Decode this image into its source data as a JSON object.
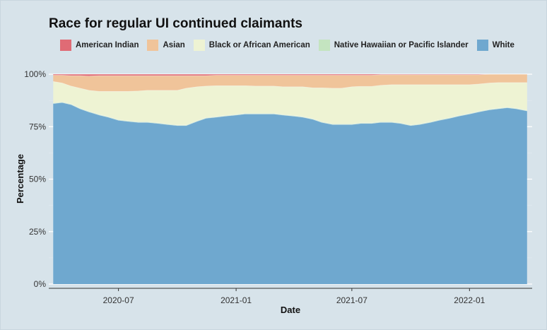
{
  "chart_data": {
    "type": "area",
    "stacked": true,
    "normalized": true,
    "title": "Race for regular UI continued claimants",
    "xlabel": "Date",
    "ylabel": "Percentage",
    "x_ticks": [
      "2020-07",
      "2021-01",
      "2021-07",
      "2022-01"
    ],
    "y_ticks": [
      "0%",
      "25%",
      "50%",
      "75%",
      "100%"
    ],
    "ylim": [
      0,
      100
    ],
    "xlim": [
      "2020-03-14",
      "2022-04-09"
    ],
    "grid": true,
    "legend_position": "top",
    "x": [
      "2020-03-21",
      "2020-04-04",
      "2020-04-18",
      "2020-05-02",
      "2020-05-16",
      "2020-06-01",
      "2020-06-15",
      "2020-07-01",
      "2020-07-15",
      "2020-08-01",
      "2020-08-15",
      "2020-09-01",
      "2020-09-15",
      "2020-10-01",
      "2020-10-15",
      "2020-11-01",
      "2020-11-15",
      "2020-12-01",
      "2020-12-15",
      "2021-01-01",
      "2021-01-15",
      "2021-02-01",
      "2021-02-15",
      "2021-03-01",
      "2021-03-15",
      "2021-04-01",
      "2021-04-15",
      "2021-05-01",
      "2021-05-15",
      "2021-06-01",
      "2021-06-15",
      "2021-07-01",
      "2021-07-15",
      "2021-08-01",
      "2021-08-15",
      "2021-09-01",
      "2021-09-15",
      "2021-10-01",
      "2021-10-15",
      "2021-11-01",
      "2021-11-15",
      "2021-12-01",
      "2021-12-15",
      "2022-01-01",
      "2022-01-15",
      "2022-02-01",
      "2022-02-15",
      "2022-03-01",
      "2022-03-15",
      "2022-04-01"
    ],
    "series": [
      {
        "name": "White",
        "color": "#6fa8cf",
        "values": [
          86,
          86.5,
          85.5,
          83.5,
          82,
          80.5,
          79.5,
          78,
          77.5,
          77,
          77,
          76.5,
          76,
          75.5,
          75.5,
          77.5,
          79,
          79.5,
          80,
          80.5,
          81,
          81,
          81,
          81,
          80.5,
          80,
          79.5,
          78.5,
          77,
          76,
          76,
          76,
          76.5,
          76.5,
          77,
          77,
          76.5,
          75.5,
          76,
          77,
          78,
          79,
          80,
          81,
          82,
          83,
          83.5,
          84,
          83.5,
          82.5
        ]
      },
      {
        "name": "Native Hawaiian or Pacific Islander",
        "color": "#c4e4c0",
        "values": [
          0.3,
          0.3,
          0.3,
          0.3,
          0.3,
          0.3,
          0.3,
          0.3,
          0.3,
          0.3,
          0.3,
          0.3,
          0.3,
          0.3,
          0.3,
          0.3,
          0.3,
          0.3,
          0.3,
          0.3,
          0.3,
          0.3,
          0.3,
          0.3,
          0.3,
          0.3,
          0.3,
          0.3,
          0.3,
          0.3,
          0.3,
          0.3,
          0.3,
          0.3,
          0.3,
          0.3,
          0.3,
          0.3,
          0.3,
          0.3,
          0.3,
          0.3,
          0.3,
          0.3,
          0.3,
          0.3,
          0.3,
          0.3,
          0.3,
          0.3
        ]
      },
      {
        "name": "Black or African American",
        "color": "#eef3d3",
        "values": [
          10.2,
          9,
          8.5,
          9.5,
          10,
          11,
          12,
          13.5,
          14,
          14.7,
          15,
          15.5,
          16,
          16.5,
          17.5,
          16.2,
          15,
          14.7,
          14.2,
          13.7,
          13.2,
          13,
          13,
          13,
          13.2,
          13.7,
          14.2,
          14.7,
          16.2,
          17,
          17,
          17.7,
          17.4,
          17.4,
          17.4,
          17.7,
          18.2,
          19.2,
          18.7,
          17.7,
          16.7,
          15.7,
          14.7,
          13.7,
          13,
          12.5,
          12.2,
          11.7,
          12.2,
          13.2
        ]
      },
      {
        "name": "Asian",
        "color": "#f0c49a",
        "values": [
          3,
          3.7,
          5,
          6,
          6.8,
          7.5,
          7.5,
          7.5,
          7.5,
          7.3,
          7,
          7,
          7,
          7,
          6,
          5.3,
          5,
          5,
          5,
          5,
          5,
          5.2,
          5.2,
          5.2,
          5.5,
          5.5,
          5.5,
          6,
          6,
          6.2,
          6.2,
          5.5,
          5.3,
          5.3,
          5,
          4.7,
          4.7,
          4.7,
          4.7,
          4.7,
          4.7,
          4.7,
          4.7,
          4.7,
          4.4,
          4.2,
          4,
          4,
          4,
          4
        ]
      },
      {
        "name": "American Indian",
        "color": "#e06b75",
        "values": [
          0.5,
          0.5,
          0.7,
          0.7,
          0.9,
          0.7,
          0.7,
          0.7,
          0.7,
          0.7,
          0.7,
          0.7,
          0.7,
          0.7,
          0.7,
          0.7,
          0.7,
          0.8,
          0.5,
          0.5,
          0.5,
          0.5,
          0.5,
          0.5,
          0.5,
          0.5,
          0.5,
          0.5,
          0.5,
          0.5,
          0.5,
          0.5,
          0.5,
          0.5,
          0.3,
          0.3,
          0.3,
          0.3,
          0.3,
          0.3,
          0.3,
          0.3,
          0.3,
          0.3,
          0.3,
          0.3,
          0.3,
          0.3,
          0.3,
          0.3
        ]
      }
    ],
    "legend": [
      {
        "name": "American Indian",
        "color": "#e06b75"
      },
      {
        "name": "Asian",
        "color": "#f0c49a"
      },
      {
        "name": "Black or African American",
        "color": "#eef3d3"
      },
      {
        "name": "Native Hawaiian or Pacific Islander",
        "color": "#c4e4c0"
      },
      {
        "name": "White",
        "color": "#6fa8cf"
      }
    ]
  }
}
